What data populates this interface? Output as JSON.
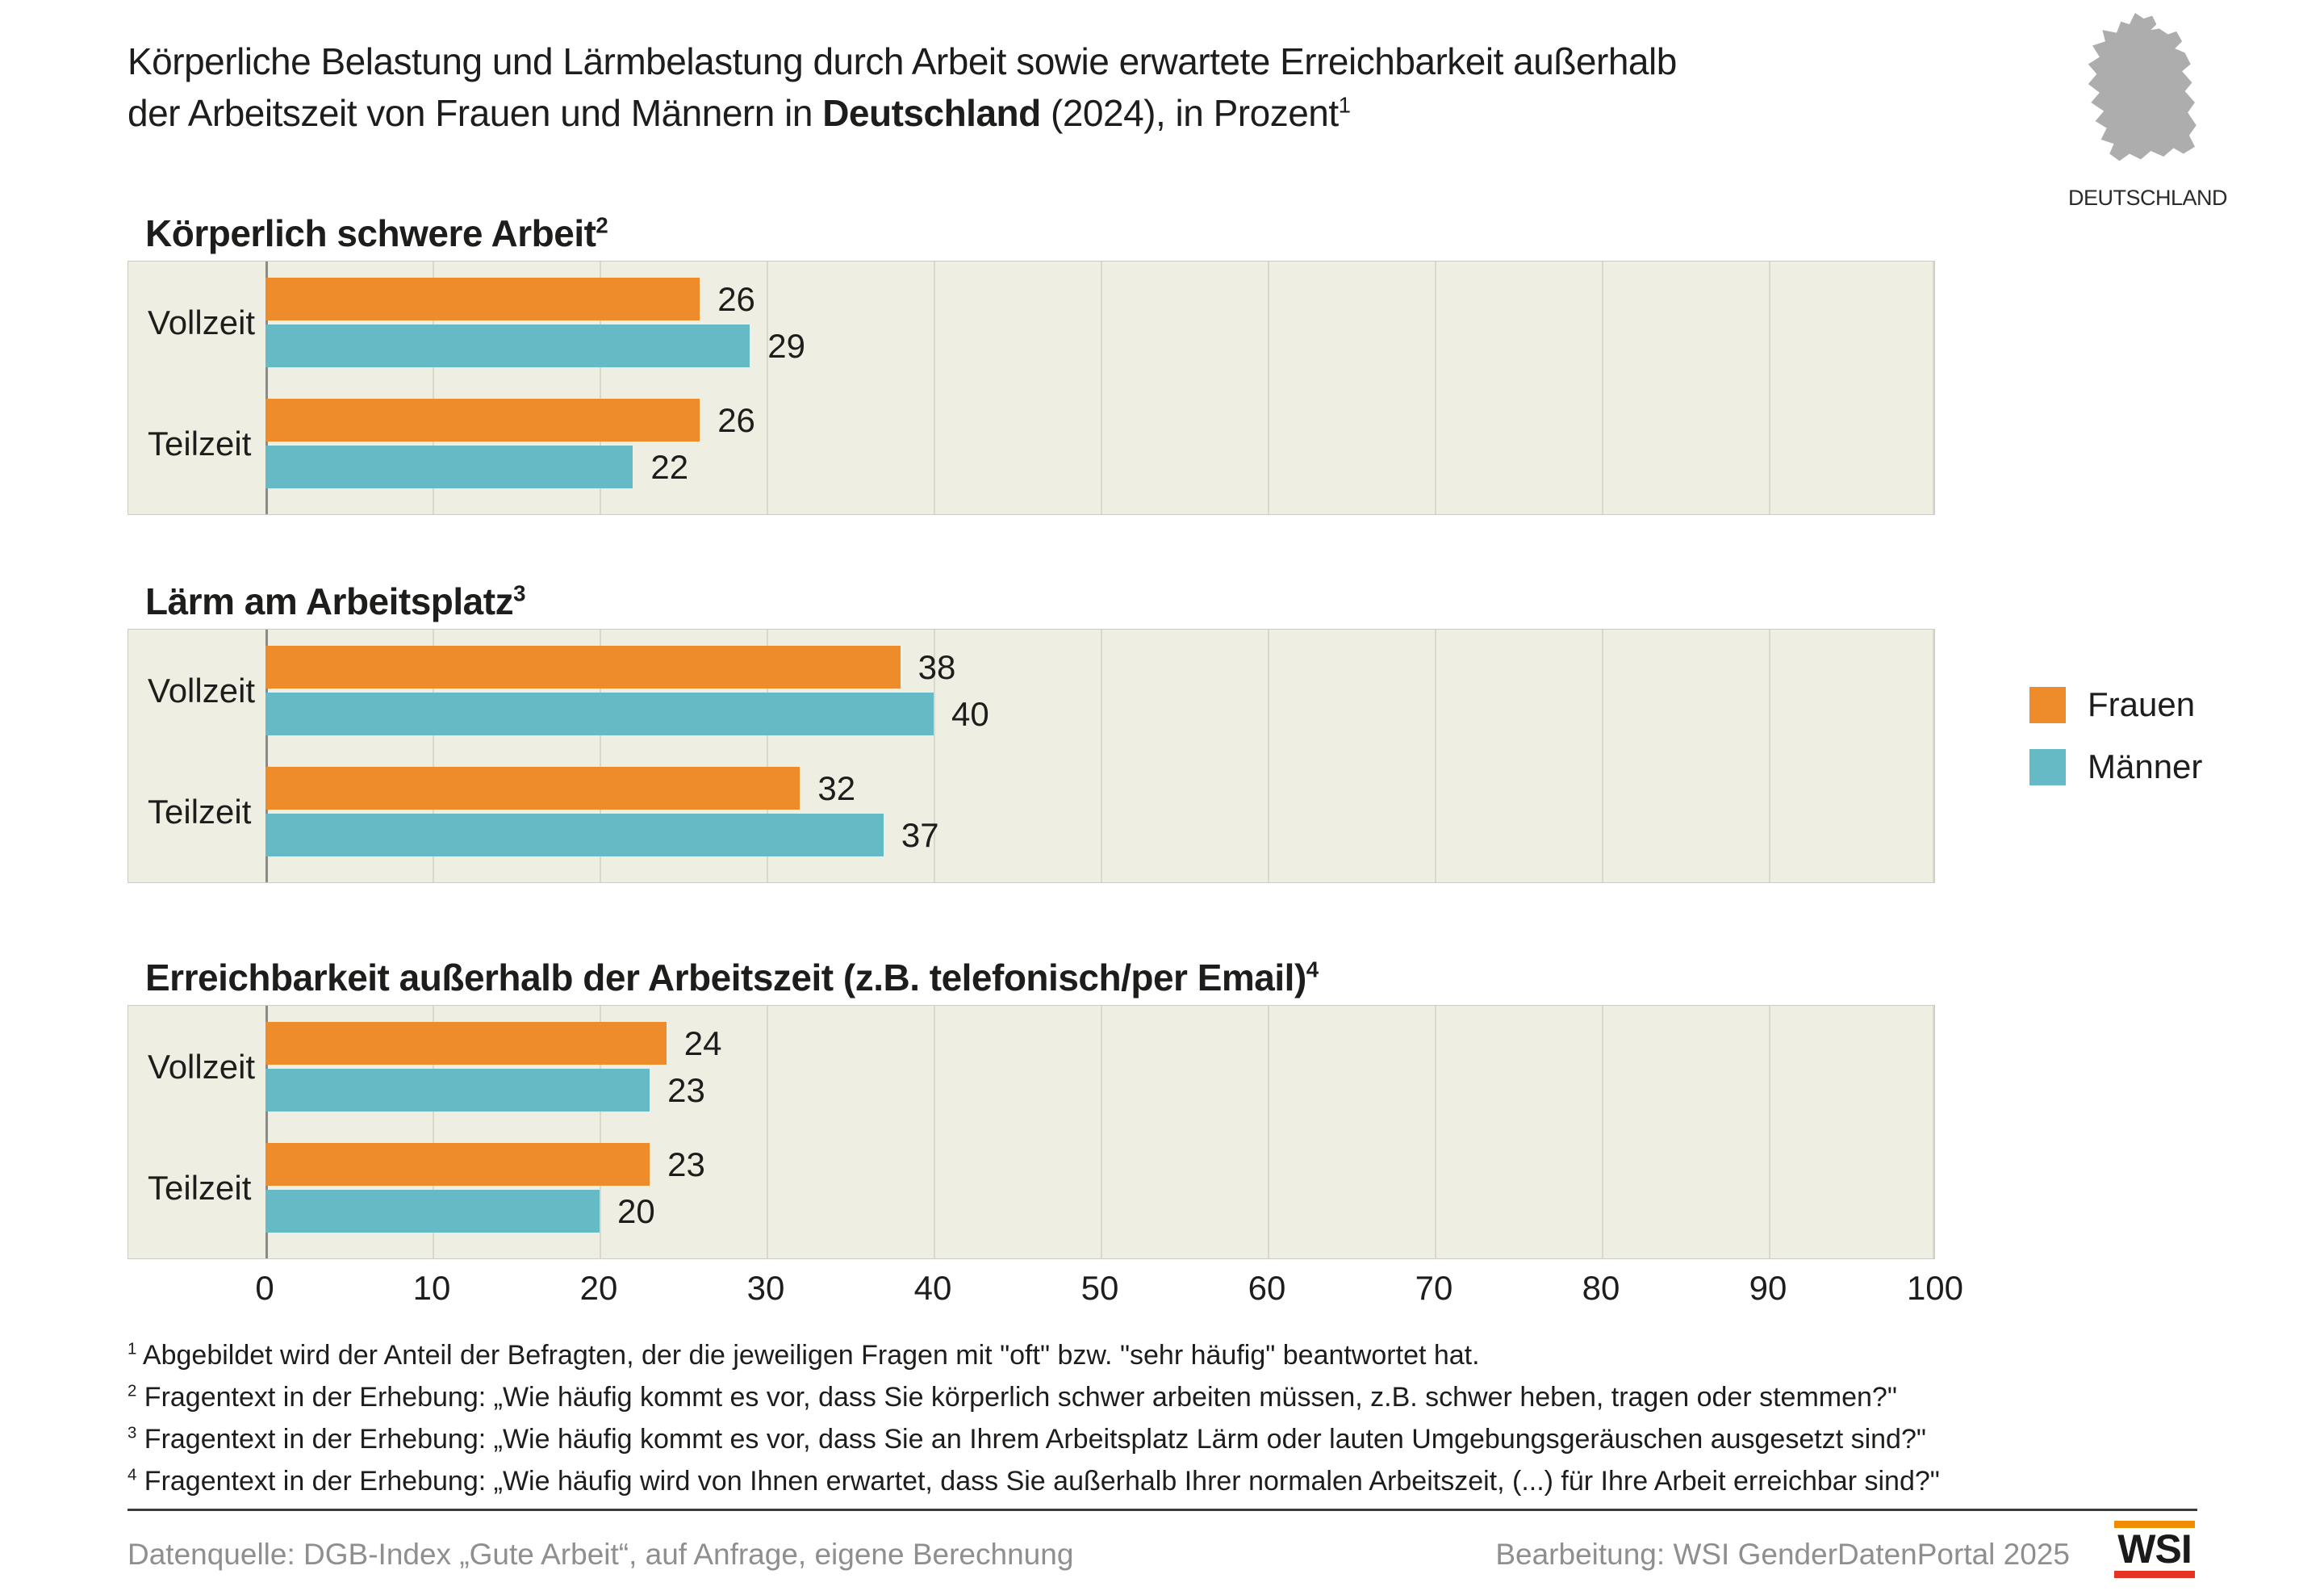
{
  "title": {
    "line1": "Körperliche Belastung und Lärmbelastung durch Arbeit sowie erwartete Erreichbarkeit außerhalb",
    "line2_regular_before": "der Arbeitszeit von Frauen und Männern in ",
    "line2_bold": "Deutschland",
    "line2_regular_after": " (2024), in Prozent",
    "footnote_ref": "1"
  },
  "map": {
    "label": "DEUTSCHLAND",
    "color": "#adadad"
  },
  "section_headers": [
    {
      "bold": "Körperlich schwere Arbeit",
      "regular": "",
      "sup": "2"
    },
    {
      "bold": "Lärm am Arbeitsplatz",
      "regular": "",
      "sup": "3"
    },
    {
      "bold": "Erreichbarkeit außerhalb der Arbeitszeit",
      "regular": " (z.B. telefonisch/per Email)",
      "sup": "4"
    }
  ],
  "chart_data": [
    {
      "type": "bar",
      "orientation": "horizontal",
      "title": "Körperlich schwere Arbeit",
      "categories": [
        "Vollzeit",
        "Teilzeit"
      ],
      "series": [
        {
          "name": "Frauen",
          "values": [
            26,
            26
          ]
        },
        {
          "name": "Männer",
          "values": [
            29,
            22
          ]
        }
      ],
      "xlim": [
        0,
        100
      ],
      "unit": "Prozent",
      "grid": true,
      "legend_position": "right"
    },
    {
      "type": "bar",
      "orientation": "horizontal",
      "title": "Lärm am Arbeitsplatz",
      "categories": [
        "Vollzeit",
        "Teilzeit"
      ],
      "series": [
        {
          "name": "Frauen",
          "values": [
            38,
            32
          ]
        },
        {
          "name": "Männer",
          "values": [
            40,
            37
          ]
        }
      ],
      "xlim": [
        0,
        100
      ],
      "unit": "Prozent",
      "grid": true,
      "legend_position": "right"
    },
    {
      "type": "bar",
      "orientation": "horizontal",
      "title": "Erreichbarkeit außerhalb der Arbeitszeit (z.B. telefonisch/per Email)",
      "categories": [
        "Vollzeit",
        "Teilzeit"
      ],
      "series": [
        {
          "name": "Frauen",
          "values": [
            24,
            23
          ]
        },
        {
          "name": "Männer",
          "values": [
            23,
            20
          ]
        }
      ],
      "xlim": [
        0,
        100
      ],
      "unit": "Prozent",
      "grid": true,
      "legend_position": "right"
    }
  ],
  "legend": {
    "items": [
      {
        "label": "Frauen",
        "color": "#ee8b2b"
      },
      {
        "label": "Männer",
        "color": "#66bac5"
      }
    ]
  },
  "axis": {
    "ticks": [
      "0",
      "10",
      "20",
      "30",
      "40",
      "50",
      "60",
      "70",
      "80",
      "90",
      "100"
    ]
  },
  "colors": {
    "plot_background": "#efeee3",
    "gridline": "#d9d8cb",
    "zero_axis": "#8a8a8a",
    "frauen": "#ee8b2b",
    "maenner": "#66bac5"
  },
  "footnotes": [
    {
      "ref": "1",
      "text": "Abgebildet wird der Anteil der Befragten, der die jeweiligen Fragen mit \"oft\" bzw. \"sehr häufig\" beantwortet hat."
    },
    {
      "ref": "2",
      "text": "Fragentext in der Erhebung: „Wie häufig kommt es vor, dass Sie körperlich schwer arbeiten müssen, z.B. schwer heben, tragen oder stemmen?\""
    },
    {
      "ref": "3",
      "text": "Fragentext in der Erhebung: „Wie häufig kommt es vor, dass Sie an Ihrem Arbeitsplatz Lärm oder lauten Umgebungsgeräuschen ausgesetzt sind?\""
    },
    {
      "ref": "4",
      "text": "Fragentext in der Erhebung: „Wie häufig wird von Ihnen erwartet, dass Sie außerhalb Ihrer normalen Arbeitszeit, (...) für Ihre Arbeit erreichbar sind?\""
    }
  ],
  "footer": {
    "source": "Datenquelle: DGB-Index „Gute Arbeit“, auf Anfrage, eigene Berechnung",
    "editing": "Bearbeitung: WSI GenderDatenPortal 2025",
    "logo_text": "WSI"
  }
}
